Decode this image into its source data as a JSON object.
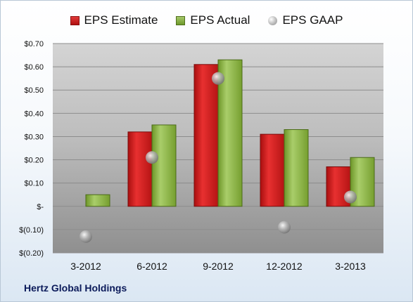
{
  "company": "Hertz Global Holdings",
  "colors": {
    "estimate": "#c81e1e",
    "actual": "#8cb548",
    "gaap": "#a0a0a0"
  },
  "chart_data": {
    "type": "bar",
    "categories": [
      "3-2012",
      "6-2012",
      "9-2012",
      "12-2012",
      "3-2013"
    ],
    "series": [
      {
        "name": "EPS Estimate",
        "kind": "bar",
        "values": [
          null,
          0.32,
          0.61,
          0.31,
          0.17
        ]
      },
      {
        "name": "EPS Actual",
        "kind": "bar",
        "values": [
          0.05,
          0.35,
          0.63,
          0.33,
          0.21
        ]
      },
      {
        "name": "EPS GAAP",
        "kind": "marker",
        "values": [
          -0.13,
          0.21,
          0.55,
          -0.09,
          0.04
        ]
      }
    ],
    "ylim": [
      -0.2,
      0.7
    ],
    "yticks": [
      -0.2,
      -0.1,
      0,
      0.1,
      0.2,
      0.3,
      0.4,
      0.5,
      0.6,
      0.7
    ],
    "ytick_labels": [
      "$(0.20)",
      "$(0.10)",
      "$-",
      "$0.10",
      "$0.20",
      "$0.30",
      "$0.40",
      "$0.50",
      "$0.60",
      "$0.70"
    ],
    "legend_position": "top",
    "grid": true
  }
}
